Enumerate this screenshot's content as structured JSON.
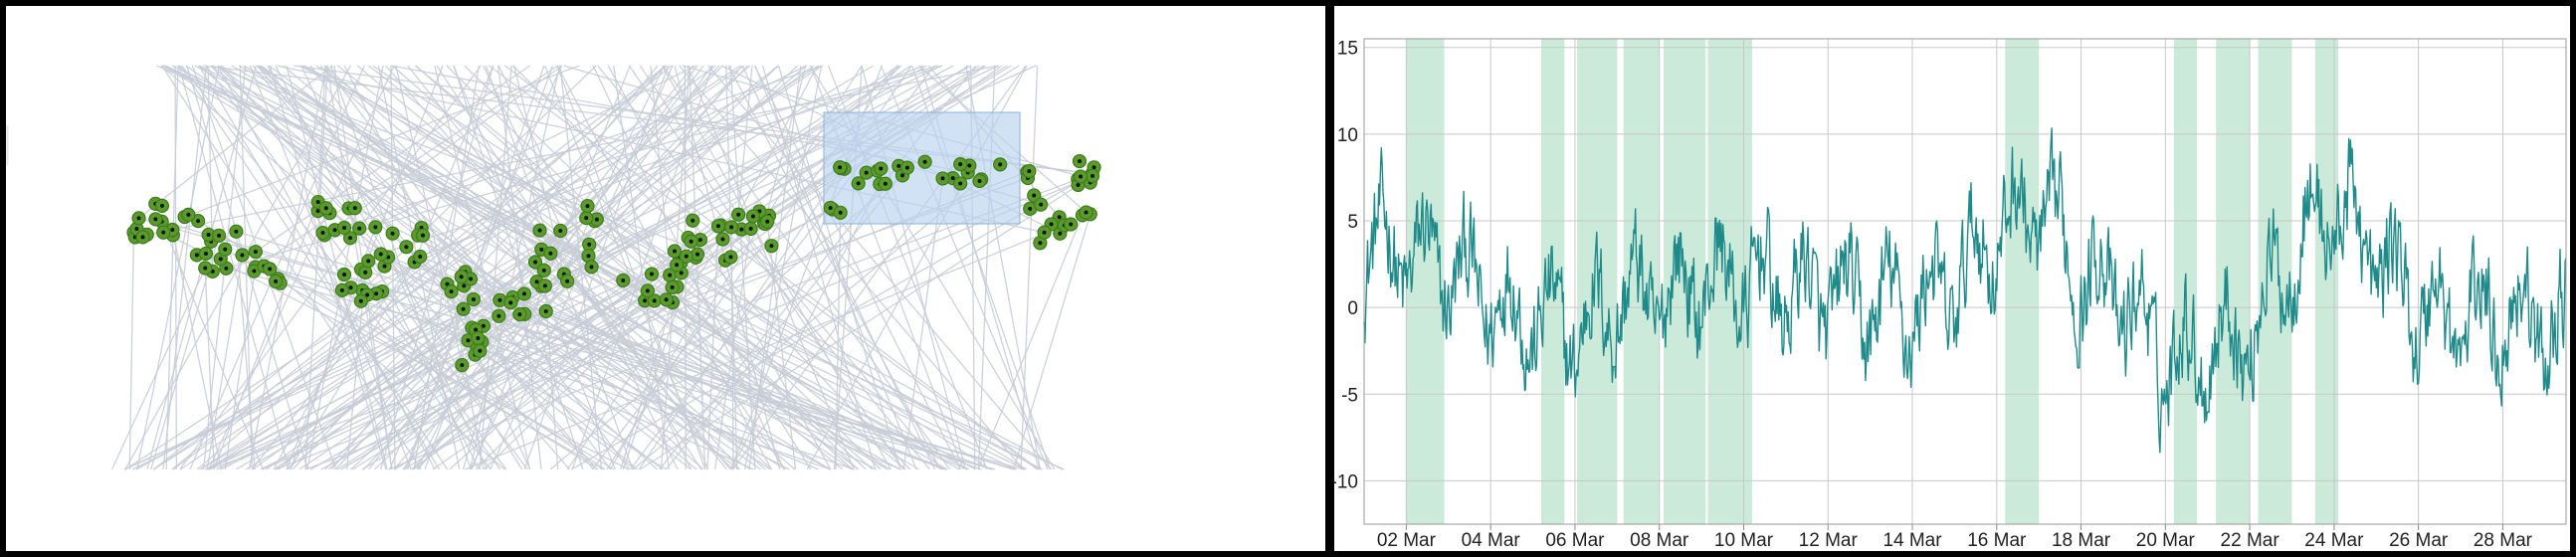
{
  "chart_data": [
    {
      "type": "scatter",
      "description_kind": "point-map-with-link-lines",
      "colors": {
        "point_fill": "#5a9c2c",
        "point_edge": "#3f7a1c",
        "point_core": "#111111",
        "links": "#c8ccd6",
        "selection_fill": "#b9d3ef",
        "selection_edge": "#8fb1d8"
      },
      "title": "",
      "xlabel": "",
      "ylabel": "",
      "grid": false,
      "legend": "none"
    },
    {
      "type": "line",
      "title": "",
      "xlabel": "",
      "ylabel": "",
      "ylim": [
        -12.5,
        15.5
      ],
      "yticks": [
        15,
        10,
        5,
        0,
        -5,
        -10
      ],
      "ytick_labels": [
        "15",
        "10",
        "5",
        "0",
        "-5",
        "-10"
      ],
      "xlim": [
        "Mar 01",
        "Mar 29 12:00"
      ],
      "xtick_labels": [
        "02 Mar",
        "04 Mar",
        "06 Mar",
        "08 Mar",
        "10 Mar",
        "12 Mar",
        "14 Mar",
        "16 Mar",
        "18 Mar",
        "20 Mar",
        "22 Mar",
        "24 Mar",
        "26 Mar",
        "28 Mar"
      ],
      "grid": true,
      "legend": "none",
      "colors": {
        "line": "#1f8a8a",
        "band": "#a8dcc0",
        "grid": "#c8c8c8"
      },
      "highlight_bands_days": [
        [
          1.0,
          1.9
        ],
        [
          4.2,
          4.75
        ],
        [
          5.05,
          6.0
        ],
        [
          6.15,
          7.0
        ],
        [
          7.1,
          8.1
        ],
        [
          8.15,
          9.2
        ],
        [
          15.2,
          16.0
        ],
        [
          19.2,
          19.75
        ],
        [
          20.2,
          21.0
        ],
        [
          21.2,
          22.0
        ],
        [
          22.55,
          23.1
        ]
      ],
      "series_daily_means": [
        {
          "day": "Mar 01",
          "value": 3.5
        },
        {
          "day": "Mar 02",
          "value": 3.0
        },
        {
          "day": "Mar 03",
          "value": 2.0
        },
        {
          "day": "Mar 04",
          "value": 0.5
        },
        {
          "day": "Mar 05",
          "value": -0.5
        },
        {
          "day": "Mar 06",
          "value": -1.5
        },
        {
          "day": "Mar 07",
          "value": 0.5
        },
        {
          "day": "Mar 08",
          "value": 0.5
        },
        {
          "day": "Mar 09",
          "value": 1.5
        },
        {
          "day": "Mar 10",
          "value": 1.5
        },
        {
          "day": "Mar 11",
          "value": 1.0
        },
        {
          "day": "Mar 12",
          "value": 0.5
        },
        {
          "day": "Mar 13",
          "value": 0.0
        },
        {
          "day": "Mar 14",
          "value": 0.0
        },
        {
          "day": "Mar 15",
          "value": 1.0
        },
        {
          "day": "Mar 16",
          "value": 4.5
        },
        {
          "day": "Mar 17",
          "value": 5.5
        },
        {
          "day": "Mar 18",
          "value": 2.0
        },
        {
          "day": "Mar 19",
          "value": 0.5
        },
        {
          "day": "Mar 20",
          "value": -3.0
        },
        {
          "day": "Mar 21",
          "value": -2.0
        },
        {
          "day": "Mar 22",
          "value": -1.5
        },
        {
          "day": "Mar 23",
          "value": 3.5
        },
        {
          "day": "Mar 24",
          "value": 6.0
        },
        {
          "day": "Mar 25",
          "value": 3.0
        },
        {
          "day": "Mar 26",
          "value": 0.0
        },
        {
          "day": "Mar 27",
          "value": -1.0
        },
        {
          "day": "Mar 28",
          "value": 0.0
        },
        {
          "day": "Mar 29",
          "value": -1.0
        }
      ]
    }
  ]
}
